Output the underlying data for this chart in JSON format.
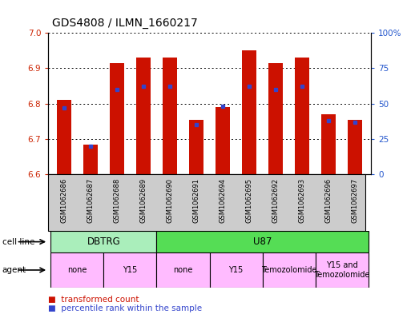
{
  "title": "GDS4808 / ILMN_1660217",
  "samples": [
    "GSM1062686",
    "GSM1062687",
    "GSM1062688",
    "GSM1062689",
    "GSM1062690",
    "GSM1062691",
    "GSM1062694",
    "GSM1062695",
    "GSM1062692",
    "GSM1062693",
    "GSM1062696",
    "GSM1062697"
  ],
  "red_values": [
    6.81,
    6.685,
    6.915,
    6.93,
    6.93,
    6.755,
    6.79,
    6.95,
    6.915,
    6.93,
    6.77,
    6.755
  ],
  "blue_values": [
    47,
    20,
    60,
    62,
    62,
    35,
    48,
    62,
    60,
    62,
    38,
    37
  ],
  "ylim_left": [
    6.6,
    7.0
  ],
  "ylim_right": [
    0,
    100
  ],
  "yticks_left": [
    6.6,
    6.7,
    6.8,
    6.9,
    7.0
  ],
  "yticks_right": [
    0,
    25,
    50,
    75,
    100
  ],
  "cell_line_groups": [
    {
      "label": "DBTRG",
      "start": 0,
      "end": 3,
      "color": "#aaeebb"
    },
    {
      "label": "U87",
      "start": 4,
      "end": 11,
      "color": "#55dd55"
    }
  ],
  "agent_groups": [
    {
      "label": "none",
      "start": 0,
      "end": 1
    },
    {
      "label": "Y15",
      "start": 2,
      "end": 3
    },
    {
      "label": "none",
      "start": 4,
      "end": 5
    },
    {
      "label": "Y15",
      "start": 6,
      "end": 7
    },
    {
      "label": "Temozolomide",
      "start": 8,
      "end": 9
    },
    {
      "label": "Y15 and\nTemozolomide",
      "start": 10,
      "end": 11
    }
  ],
  "agent_color": "#ffbbff",
  "bar_color": "#cc1100",
  "dot_color": "#3344cc",
  "baseline": 6.6,
  "xlabels_bg": "#cccccc",
  "tick_color_left": "#cc2200",
  "tick_color_right": "#2255cc"
}
